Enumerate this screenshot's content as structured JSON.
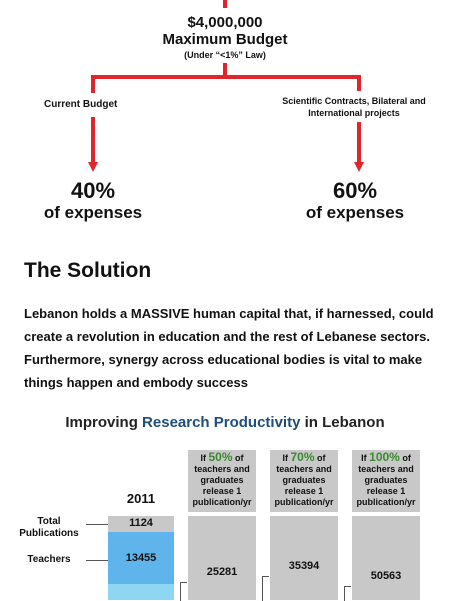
{
  "budget": {
    "amount": "$4,000,000",
    "title": "Maximum Budget",
    "note": "(Under “<1%” Law)"
  },
  "branches": {
    "left_label": "Current Budget",
    "right_label": "Scientific Contracts, Bilateral and International projects",
    "left_percent": "40%",
    "left_sub": "of expenses",
    "right_percent": "60%",
    "right_sub": "of expenses"
  },
  "solution": {
    "title": "The Solution",
    "body": "Lebanon holds a MASSIVE human capital that, if harnessed, could create a revolution in education and the rest of Lebanese sectors. Furthermore, synergy across educational bodies is vital to make things happen and embody success"
  },
  "chart": {
    "title_pre": "Improving ",
    "title_highlight": "Research Productivity",
    "title_post": " in Lebanon",
    "year_label": "2011",
    "row_labels": {
      "total": "Total Publications",
      "teachers": "Teachers"
    },
    "current": {
      "total_publications": "1124",
      "teachers": "13455"
    },
    "scenarios": [
      {
        "prefix": "If ",
        "percent": "50%",
        "suffix": " of teachers and graduates release 1 publication/yr",
        "value": "25281"
      },
      {
        "prefix": "If ",
        "percent": "70%",
        "suffix": " of teachers and graduates release 1 publication/yr",
        "value": "35394"
      },
      {
        "prefix": "If ",
        "percent": "100%",
        "suffix": " of teachers and graduates release 1 publication/yr",
        "value": "50563"
      }
    ]
  },
  "colors": {
    "arrow": "#e0262a",
    "highlight": "#1f4e7a",
    "percent_green": "#3b8a2e",
    "bar_grey": "#c8c8c8",
    "teachers_blue": "#5fb4ec",
    "teachers_light": "#8fd6f2"
  }
}
